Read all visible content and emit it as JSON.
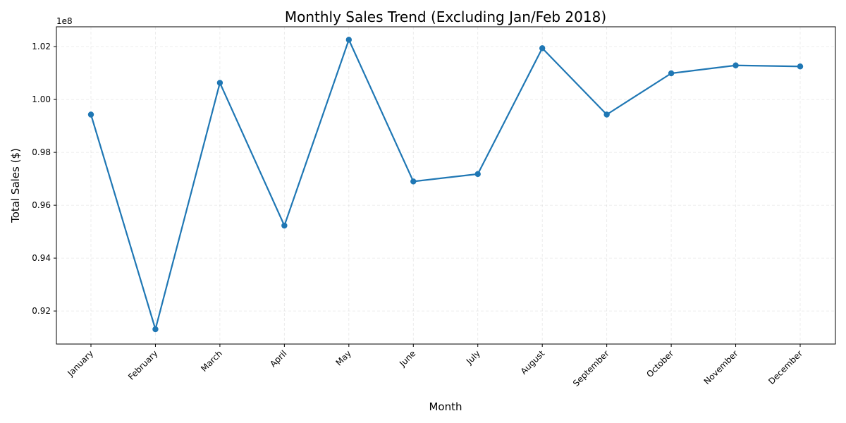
{
  "chart_data": {
    "type": "line",
    "title": "Monthly Sales Trend (Excluding Jan/Feb 2018)",
    "xlabel": "Month",
    "ylabel": "Total Sales ($)",
    "offset_label": "1e8",
    "categories": [
      "January",
      "February",
      "March",
      "April",
      "May",
      "June",
      "July",
      "August",
      "September",
      "October",
      "November",
      "December"
    ],
    "series": [
      {
        "values": [
          0.9943,
          0.9131,
          1.0063,
          0.9523,
          1.0226,
          0.969,
          0.9718,
          1.0194,
          0.9943,
          1.0099,
          1.0129,
          1.0125
        ],
        "color": "#1f77b4"
      }
    ],
    "ylim": [
      0.9075,
      1.0275
    ],
    "yticks": [
      0.92,
      0.94,
      0.96,
      0.98,
      1.0,
      1.02
    ],
    "ytick_labels": [
      "0.92",
      "0.94",
      "0.96",
      "0.98",
      "1.00",
      "1.02"
    ],
    "grid": true,
    "marker": "circle"
  }
}
